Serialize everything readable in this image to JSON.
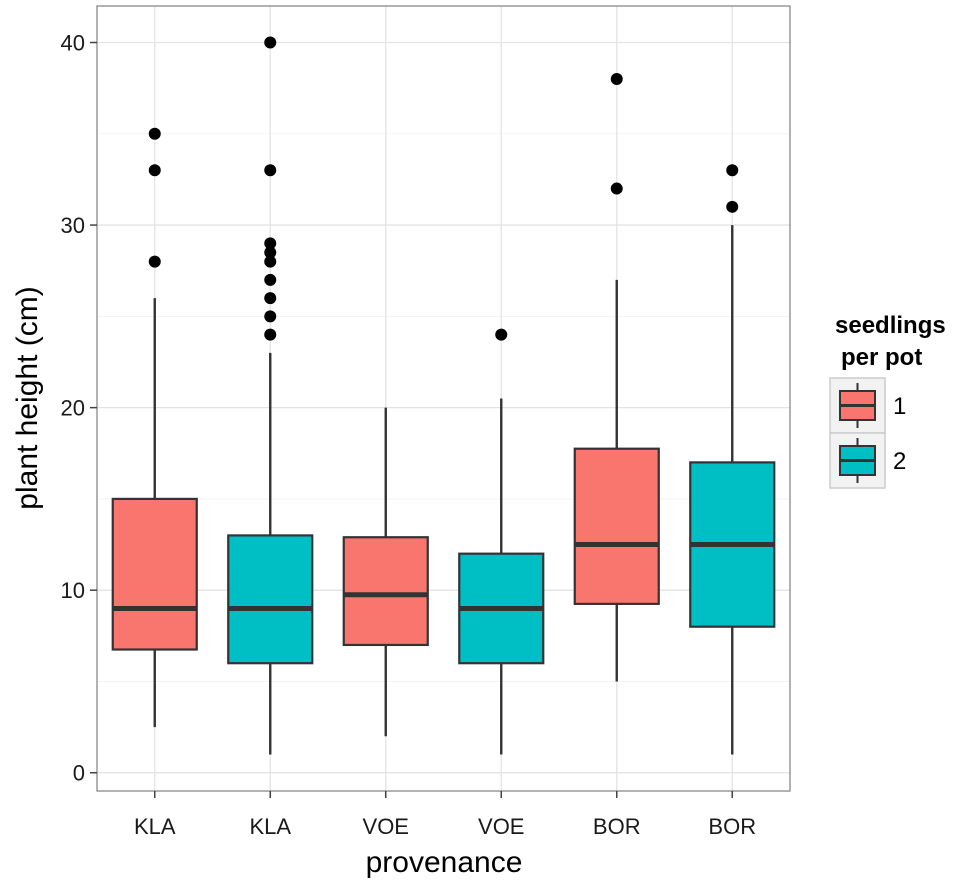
{
  "chart_data": {
    "type": "boxplot",
    "title": "",
    "xlabel": "provenance",
    "ylabel": "plant height (cm)",
    "ylim": [
      -1,
      42
    ],
    "yticks": [
      0,
      10,
      20,
      30,
      40
    ],
    "categories": [
      "KLA",
      "KLA",
      "VOE",
      "VOE",
      "BOR",
      "BOR"
    ],
    "legend": {
      "title_line1": "seedlings",
      "title_line2": "per pot",
      "position": "right",
      "entries": [
        {
          "label": "1",
          "color": "#F8766D"
        },
        {
          "label": "2",
          "color": "#00BFC4"
        }
      ]
    },
    "boxes": [
      {
        "category": "KLA",
        "group": "1",
        "lower_whisker": 2.5,
        "q1": 6.75,
        "median": 9,
        "q3": 15,
        "upper_whisker": 26,
        "outliers": [
          28,
          33,
          35
        ]
      },
      {
        "category": "KLA",
        "group": "2",
        "lower_whisker": 1,
        "q1": 6,
        "median": 9,
        "q3": 13,
        "upper_whisker": 23,
        "outliers": [
          24,
          25,
          26,
          27,
          28,
          28.5,
          29,
          33,
          40
        ]
      },
      {
        "category": "VOE",
        "group": "1",
        "lower_whisker": 2,
        "q1": 7,
        "median": 9.75,
        "q3": 12.9,
        "upper_whisker": 20,
        "outliers": []
      },
      {
        "category": "VOE",
        "group": "2",
        "lower_whisker": 1,
        "q1": 6,
        "median": 9,
        "q3": 12,
        "upper_whisker": 20.5,
        "outliers": [
          24
        ]
      },
      {
        "category": "BOR",
        "group": "1",
        "lower_whisker": 5,
        "q1": 9.25,
        "median": 12.5,
        "q3": 17.75,
        "upper_whisker": 27,
        "outliers": [
          32,
          38
        ]
      },
      {
        "category": "BOR",
        "group": "2",
        "lower_whisker": 1,
        "q1": 8,
        "median": 12.5,
        "q3": 17,
        "upper_whisker": 30,
        "outliers": [
          31,
          33
        ]
      }
    ]
  }
}
